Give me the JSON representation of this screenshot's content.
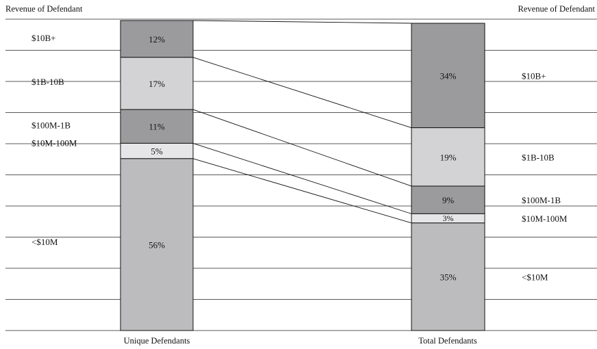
{
  "chart_data": {
    "type": "bar",
    "stacked": true,
    "grid": true,
    "y_axis_title_left": "Revenue of Defendant",
    "y_axis_title_right": "Revenue of Defendant",
    "categories": [
      "Unique Defendants",
      "Total Defendants"
    ],
    "segments_top_to_bottom": [
      "$10B+",
      "$1B-10B",
      "$100M-1B",
      "$10M-100M",
      "<$10M"
    ],
    "series": [
      {
        "name": "$10B+",
        "values": [
          12,
          34
        ],
        "color": "#9b9b9e"
      },
      {
        "name": "$1B-10B",
        "values": [
          17,
          19
        ],
        "color": "#d3d3d5"
      },
      {
        "name": "$100M-1B",
        "values": [
          11,
          9
        ],
        "color": "#9b9b9e"
      },
      {
        "name": "$10M-100M",
        "values": [
          5,
          3
        ],
        "color": "#e6e6e8"
      },
      {
        "name": "<$10M",
        "values": [
          56,
          35
        ],
        "color": "#bcbcbf"
      }
    ],
    "data_labels": [
      [
        "12%",
        "17%",
        "11%",
        "5%",
        "56%"
      ],
      [
        "34%",
        "19%",
        "9%",
        "3%",
        "35%"
      ]
    ],
    "connector_lines": true
  }
}
